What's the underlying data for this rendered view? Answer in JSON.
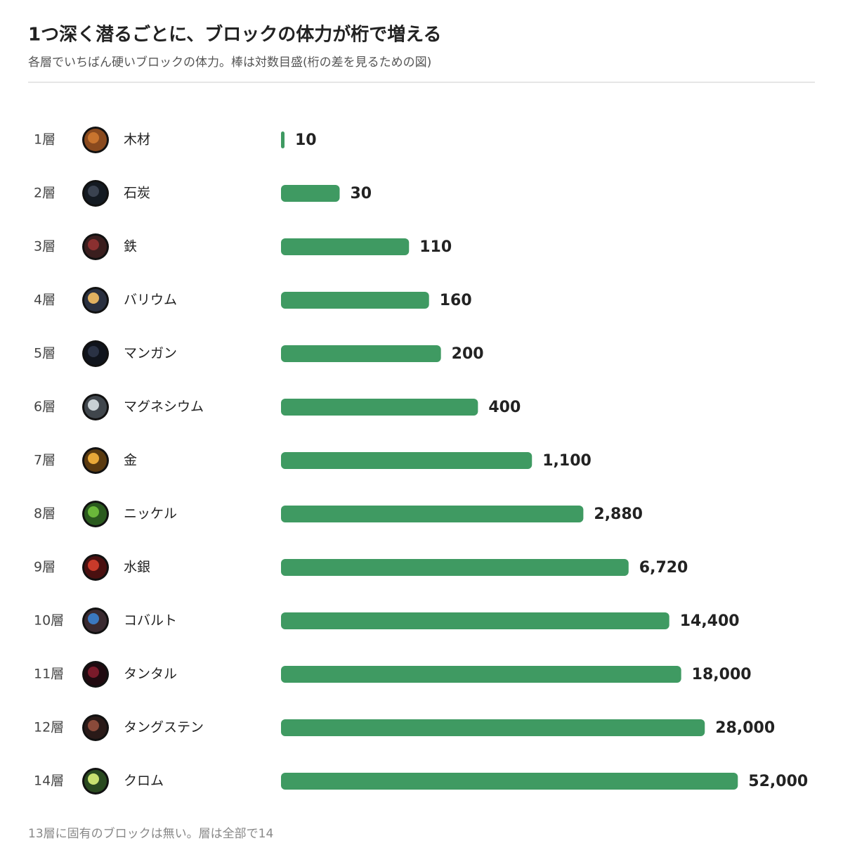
{
  "chart_data": {
    "type": "bar",
    "orientation": "horizontal",
    "log_scale": true,
    "title": "1つ深く潜るごとに、ブロックの体力が桁で増える",
    "subtitle": "各層でいちばん硬いブロックの体力。棒は対数目盛(桁の差を見るための図)",
    "layers": [
      "1層",
      "2層",
      "3層",
      "4層",
      "5層",
      "6層",
      "7層",
      "8層",
      "9層",
      "10層",
      "11層",
      "12層",
      "14層"
    ],
    "categories": [
      "木材",
      "石炭",
      "鉄",
      "バリウム",
      "マンガン",
      "マグネシウム",
      "金",
      "ニッケル",
      "水銀",
      "コバルト",
      "タンタル",
      "タングステン",
      "クロム"
    ],
    "values": [
      10,
      30,
      110,
      160,
      200,
      400,
      1100,
      2880,
      6720,
      14400,
      18000,
      28000,
      52000
    ],
    "value_labels": [
      "10",
      "30",
      "110",
      "160",
      "200",
      "400",
      "1,100",
      "2,880",
      "6,720",
      "14,400",
      "18,000",
      "28,000",
      "52,000"
    ],
    "color": "#3f9a62",
    "xlim": [
      10,
      100000
    ],
    "footnote": "13層に固有のブロックは無い。層は全部で14"
  }
}
